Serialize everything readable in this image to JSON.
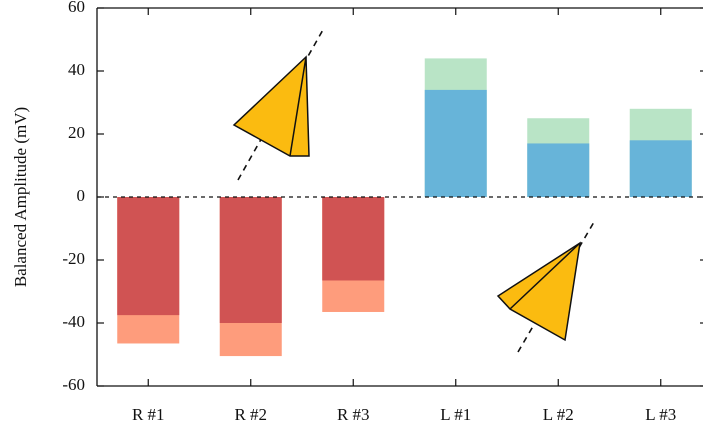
{
  "chart_data": {
    "type": "bar",
    "overlay": true,
    "y_label": "Balanced Amplitude (mV)",
    "categories": [
      "R #1",
      "R #2",
      "R #3",
      "L #1",
      "L #2",
      "L #3"
    ],
    "series": [
      {
        "colors": [
          "#fe9c7c",
          "#fe9c7c",
          "#fe9c7c",
          "#b9e4c6",
          "#b9e4c6",
          "#b9e4c6"
        ],
        "values": [
          -46.5,
          -50.5,
          -36.5,
          44,
          25,
          28
        ]
      },
      {
        "colors": [
          "#d05353",
          "#d05353",
          "#d05353",
          "#67b4d9",
          "#67b4d9",
          "#67b4d9"
        ],
        "values": [
          -37.5,
          -40,
          -26.5,
          34,
          17,
          18
        ]
      }
    ],
    "ylim": [
      -60,
      60
    ],
    "yticks": [
      -60,
      -40,
      -20,
      0,
      20,
      40,
      60
    ],
    "grid": false
  }
}
